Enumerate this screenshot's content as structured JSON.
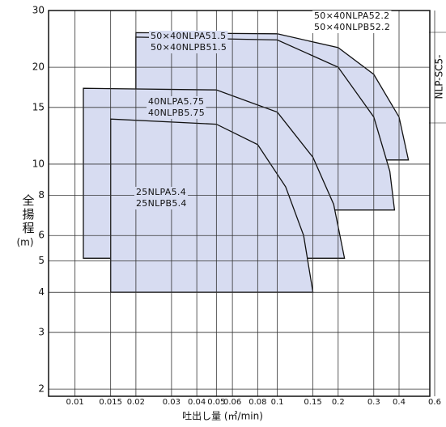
{
  "chart_data": {
    "type": "region",
    "xlabel": "吐出し量 (㎥/min)",
    "ylabel": "全揚程",
    "yunit": "(m)",
    "side_tag": "NLP-SC5-",
    "xlog": true,
    "ylog": true,
    "grid": true,
    "xlim": [
      0.0074,
      0.6
    ],
    "ylim": [
      1.9,
      30
    ],
    "xticks": [
      0.01,
      0.015,
      0.02,
      0.03,
      0.04,
      0.05,
      0.06,
      0.08,
      0.1,
      0.15,
      0.2,
      0.3,
      0.4,
      0.6
    ],
    "yticks": [
      2,
      3,
      4,
      5,
      6,
      8,
      10,
      15,
      20,
      30
    ],
    "color": "#d7dcf1",
    "series": [
      {
        "labels": [
          "50×40NLPA52.2",
          "50×40NLPB52.2"
        ],
        "x": [
          0.02,
          0.02,
          0.1,
          0.2,
          0.3,
          0.4,
          0.445
        ],
        "values": [
          10.3,
          25.6,
          25.4,
          23,
          19,
          14,
          10.3
        ]
      },
      {
        "labels": [
          "50×40NLPA51.5",
          "50×40NLPB51.5"
        ],
        "x": [
          0.02,
          0.02,
          0.1,
          0.2,
          0.3,
          0.36,
          0.38
        ],
        "values": [
          7.2,
          24.8,
          24.3,
          20,
          14,
          9.5,
          7.2
        ]
      },
      {
        "labels": [
          "40NLPA5.75",
          "40NLPB5.75"
        ],
        "x": [
          0.011,
          0.011,
          0.05,
          0.1,
          0.15,
          0.19,
          0.215
        ],
        "values": [
          5.1,
          17.2,
          17,
          14.5,
          10.5,
          7.5,
          5.1
        ]
      },
      {
        "labels": [
          "25NLPA5.4",
          "25NLPB5.4"
        ],
        "x": [
          0.015,
          0.015,
          0.05,
          0.08,
          0.11,
          0.135,
          0.15
        ],
        "values": [
          4,
          13.8,
          13.3,
          11.5,
          8.5,
          6,
          4
        ]
      }
    ]
  }
}
